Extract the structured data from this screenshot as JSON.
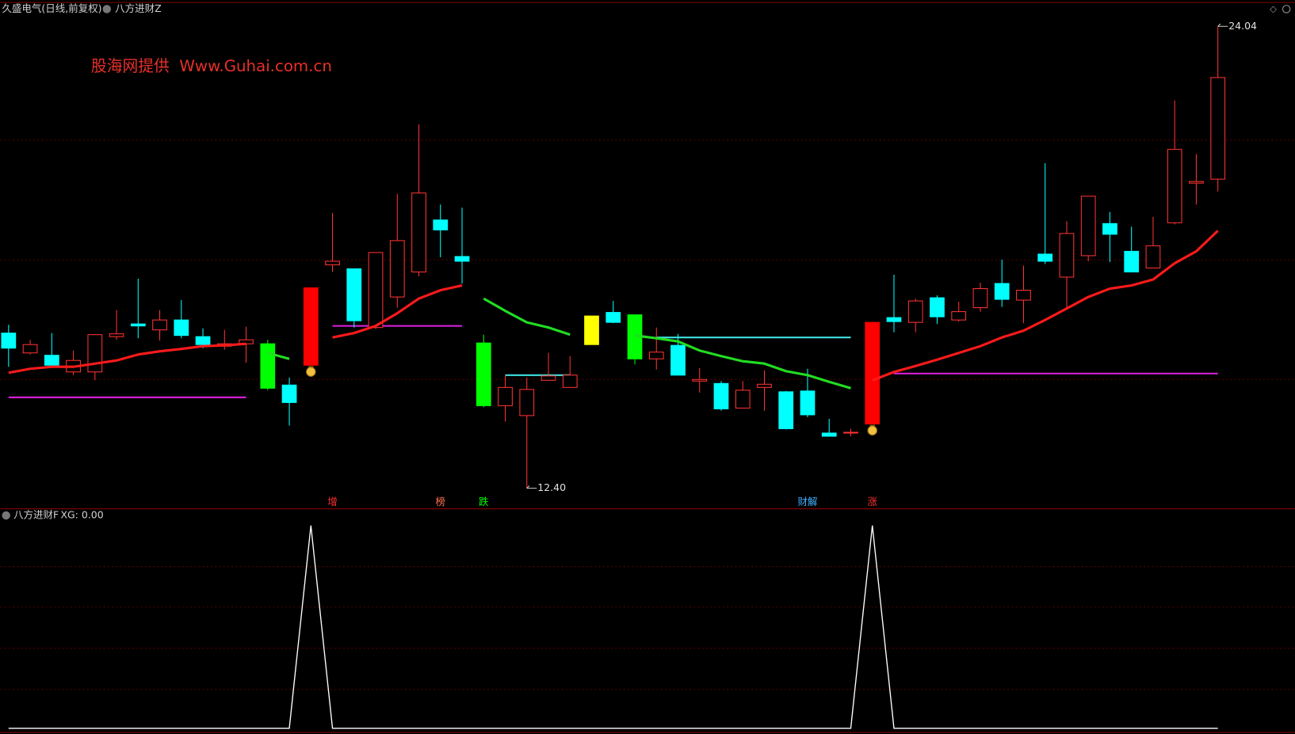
{
  "chart_data": [
    {
      "type": "candlestick",
      "title": "久盛电气(日线,前复权)",
      "indicator": "八方进财Z",
      "watermark": "股海网提供  Www.Guhai.com.cn",
      "up_color": "#ff3232",
      "down_color": "#00ffff",
      "ylim": [
        11.88,
        24.33
      ],
      "open": [
        16.31,
        15.81,
        15.75,
        15.33,
        15.33,
        16.22,
        16.54,
        16.39,
        16.64,
        16.22,
        15.98,
        16.04,
        16.04,
        15.0,
        15.5,
        18.03,
        17.93,
        16.45,
        17.22,
        17.85,
        19.16,
        18.24,
        16.06,
        14.48,
        14.23,
        15.12,
        14.94,
        16.02,
        16.83,
        16.77,
        15.66,
        16.0,
        15.1,
        15.04,
        14.42,
        14.94,
        14.83,
        14.85,
        13.79,
        13.79,
        14.02,
        16.7,
        16.58,
        17.2,
        16.64,
        16.95,
        17.56,
        17.14,
        18.3,
        17.72,
        18.26,
        19.07,
        18.37,
        17.95,
        19.09,
        20.09,
        20.19
      ],
      "high": [
        16.52,
        16.14,
        16.31,
        15.87,
        16.27,
        16.89,
        17.68,
        16.89,
        17.14,
        16.43,
        16.39,
        16.47,
        16.14,
        15.19,
        17.45,
        19.34,
        17.93,
        18.34,
        19.82,
        21.57,
        19.55,
        19.47,
        16.27,
        15.25,
        15.19,
        15.81,
        15.73,
        16.74,
        17.12,
        16.77,
        16.45,
        16.29,
        15.43,
        15.1,
        15.1,
        15.37,
        14.85,
        15.41,
        14.15,
        13.9,
        16.58,
        17.78,
        17.18,
        17.26,
        17.1,
        17.58,
        18.16,
        18.01,
        20.59,
        19.13,
        19.76,
        19.36,
        18.99,
        19.24,
        22.17,
        20.82,
        24.04
      ],
      "low": [
        15.46,
        15.77,
        15.5,
        15.25,
        15.12,
        16.14,
        16.18,
        16.12,
        16.18,
        15.93,
        15.89,
        15.56,
        14.87,
        13.98,
        15.5,
        17.85,
        16.45,
        16.41,
        16.95,
        17.74,
        18.22,
        17.56,
        14.44,
        14.08,
        12.4,
        15.12,
        14.94,
        16.02,
        16.56,
        15.52,
        15.39,
        15.25,
        14.81,
        14.35,
        14.42,
        14.35,
        13.88,
        14.19,
        13.71,
        13.71,
        14.02,
        16.33,
        16.33,
        16.54,
        16.6,
        16.85,
        16.97,
        16.56,
        18.05,
        16.91,
        18.12,
        18.1,
        17.85,
        17.95,
        19.05,
        19.55,
        19.88
      ],
      "close": [
        15.93,
        16.02,
        15.5,
        15.62,
        16.27,
        16.29,
        16.49,
        16.64,
        16.25,
        16.02,
        16.04,
        16.14,
        14.92,
        14.56,
        17.45,
        18.12,
        16.62,
        18.34,
        18.64,
        19.84,
        18.91,
        18.12,
        14.48,
        14.94,
        14.89,
        15.23,
        15.25,
        16.74,
        16.58,
        15.66,
        15.83,
        15.25,
        15.14,
        14.4,
        14.87,
        15.02,
        13.9,
        14.25,
        13.71,
        13.81,
        16.58,
        16.6,
        17.12,
        16.72,
        16.85,
        17.43,
        17.16,
        17.39,
        18.12,
        18.82,
        19.76,
        18.8,
        17.85,
        18.51,
        20.94,
        20.13,
        22.75
      ],
      "highlights": [
        {
          "index": 12,
          "color": "#00ff00"
        },
        {
          "index": 14,
          "color": "#ff0000"
        },
        {
          "index": 22,
          "color": "#00ff00"
        },
        {
          "index": 27,
          "color": "#ffff00"
        },
        {
          "index": 29,
          "color": "#00ff00"
        },
        {
          "index": 40,
          "color": "#ff0000"
        }
      ],
      "ma": [
        {
          "color": "#ff1a1a",
          "values": [
            15.31,
            15.41,
            15.46,
            15.46,
            15.54,
            15.62,
            15.77,
            15.85,
            15.91,
            15.98,
            16.0,
            16.04,
            null,
            null,
            null,
            16.2,
            16.31,
            16.49,
            16.81,
            17.18,
            17.39,
            17.51,
            null,
            null,
            null,
            null,
            null,
            null,
            null,
            null,
            null,
            null,
            null,
            null,
            null,
            null,
            null,
            null,
            null,
            null,
            15.12,
            15.33,
            15.48,
            15.64,
            15.81,
            15.98,
            16.2,
            16.37,
            16.64,
            16.93,
            17.22,
            17.43,
            17.51,
            17.66,
            18.07,
            18.37,
            18.89
          ]
        },
        {
          "color": "#22dd22",
          "values": [
            null,
            null,
            null,
            null,
            null,
            null,
            null,
            null,
            null,
            null,
            null,
            null,
            15.81,
            15.66,
            null,
            null,
            null,
            null,
            null,
            null,
            null,
            null,
            17.18,
            16.87,
            16.58,
            16.45,
            16.27,
            null,
            null,
            16.25,
            16.18,
            16.1,
            15.87,
            15.73,
            15.6,
            15.54,
            15.35,
            15.25,
            15.08,
            14.92,
            null,
            null,
            null,
            null,
            null,
            null,
            null,
            null,
            null,
            null,
            null,
            null,
            null,
            null,
            null,
            null,
            null
          ]
        }
      ],
      "levels": [
        {
          "value": 14.69,
          "start": 0,
          "end": 11,
          "color": "#e020e0"
        },
        {
          "value": 16.49,
          "start": 15,
          "end": 21,
          "color": "#e020e0"
        },
        {
          "value": 15.25,
          "start": 23,
          "end": 26,
          "color": "#40e0e0"
        },
        {
          "value": 16.2,
          "start": 30,
          "end": 39,
          "color": "#40e0e0"
        },
        {
          "value": 15.29,
          "start": 41,
          "end": 56,
          "color": "#e020e0"
        }
      ],
      "high_label": "24.04",
      "low_label": "12.40",
      "signals": [
        {
          "label": "增",
          "index": 15,
          "color": "#ff3030"
        },
        {
          "label": "榜",
          "index": 20,
          "color": "#ff7050"
        },
        {
          "label": "跌",
          "index": 22,
          "color": "#00ff00"
        },
        {
          "label": "财解",
          "index": 37,
          "color": "#40b0ff"
        },
        {
          "label": "涨",
          "index": 40,
          "color": "#ff3030"
        }
      ]
    },
    {
      "type": "line",
      "title": "八方进财F",
      "subtitle": "XG: 0.00",
      "color": "#ffffff",
      "ylim": [
        -0.02,
        1.07
      ],
      "values": [
        0,
        0,
        0,
        0,
        0,
        0,
        0,
        0,
        0,
        0,
        0,
        0,
        0,
        0,
        1,
        0,
        0,
        0,
        0,
        0,
        0,
        0,
        0,
        0,
        0,
        0,
        0,
        0,
        0,
        0,
        0,
        0,
        0,
        0,
        0,
        0,
        0,
        0,
        0,
        0,
        1,
        0,
        0,
        0,
        0,
        0,
        0,
        0,
        0,
        0,
        0,
        0,
        0,
        0,
        0,
        0,
        0
      ]
    }
  ]
}
